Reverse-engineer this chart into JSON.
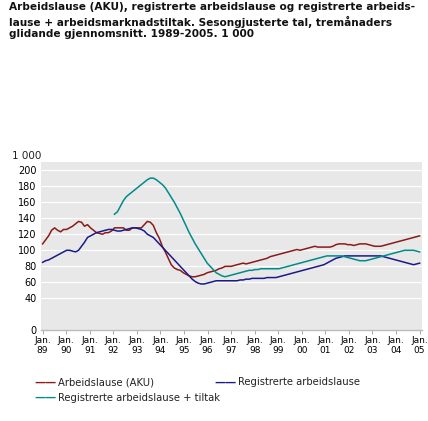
{
  "title_lines": [
    "Arbeidslause (AKU), registrerte arbeidslause og registrerte arbeids-",
    "lause + arbeidsmarknadstiltak. Sesongjusterte tal, tremånaders",
    "glidande gjennomsnitt. 1989-2005. 1 000"
  ],
  "ylabel_top": "1 000",
  "yticks": [
    0,
    40,
    60,
    80,
    100,
    120,
    140,
    160,
    180,
    200
  ],
  "ylim": [
    0,
    210
  ],
  "xtick_labels": [
    "Jan.\n89",
    "Jan.\n90",
    "Jan.\n91",
    "Jan.\n92",
    "Jan.\n93",
    "Jan.\n94",
    "Jan.\n95",
    "Jan.\n96",
    "Jan.\n97",
    "Jan.\n98",
    "Jan.\n99",
    "Jan.\n00",
    "Jan.\n01",
    "Jan.\n02",
    "Jan.\n03",
    "Jan.\n04",
    "Jan.\n05"
  ],
  "color_aku": "#8B1A1A",
  "color_reg": "#1A1A8B",
  "color_tiltak": "#008B8B",
  "legend": [
    "Arbeidslause (AKU)",
    "Registrerte arbeidslause",
    "Registrerte arbeidslause + tiltak"
  ],
  "plot_bg": "#e8e8e8",
  "fig_bg": "#ffffff",
  "grid_color": "#ffffff",
  "aku": [
    108,
    113,
    118,
    125,
    128,
    125,
    123,
    126,
    126,
    128,
    130,
    133,
    136,
    135,
    130,
    132,
    128,
    125,
    122,
    121,
    120,
    122,
    122,
    124,
    128,
    128,
    128,
    128,
    125,
    125,
    128,
    128,
    128,
    128,
    132,
    136,
    135,
    131,
    122,
    115,
    105,
    98,
    90,
    82,
    78,
    76,
    75,
    72,
    70,
    68,
    67,
    67,
    68,
    69,
    70,
    72,
    73,
    74,
    75,
    77,
    78,
    80,
    80,
    80,
    81,
    82,
    83,
    84,
    83,
    84,
    85,
    86,
    87,
    88,
    89,
    90,
    92,
    93,
    94,
    95,
    96,
    97,
    98,
    99,
    100,
    101,
    100,
    101,
    102,
    103,
    104,
    105,
    104,
    104,
    104,
    104,
    104,
    105,
    107,
    108,
    108,
    108,
    107,
    107,
    106,
    107,
    108,
    108,
    108,
    107,
    106,
    105,
    105,
    105,
    106,
    107,
    108,
    109,
    110,
    111,
    112,
    113,
    114,
    115,
    116,
    117,
    118
  ],
  "reg": [
    85,
    87,
    88,
    90,
    92,
    94,
    96,
    98,
    100,
    100,
    99,
    98,
    100,
    105,
    110,
    116,
    118,
    120,
    122,
    123,
    124,
    125,
    126,
    126,
    125,
    124,
    124,
    125,
    126,
    127,
    128,
    128,
    127,
    126,
    124,
    120,
    118,
    116,
    112,
    108,
    104,
    100,
    96,
    92,
    88,
    84,
    80,
    76,
    72,
    68,
    64,
    61,
    59,
    58,
    58,
    59,
    60,
    61,
    62,
    62,
    62,
    62,
    62,
    62,
    62,
    62,
    63,
    63,
    64,
    64,
    65,
    65,
    65,
    65,
    65,
    66,
    66,
    66,
    66,
    67,
    68,
    69,
    70,
    71,
    72,
    73,
    74,
    75,
    76,
    77,
    78,
    79,
    80,
    81,
    82,
    84,
    86,
    88,
    90,
    91,
    92,
    93,
    93,
    93,
    93,
    93,
    93,
    93,
    93,
    93,
    93,
    93,
    93,
    93,
    92,
    91,
    90,
    89,
    88,
    87,
    86,
    85,
    84,
    83,
    82,
    83,
    84
  ],
  "tiltak": [
    null,
    null,
    null,
    null,
    null,
    null,
    null,
    null,
    null,
    null,
    null,
    null,
    null,
    null,
    null,
    null,
    null,
    null,
    null,
    null,
    null,
    null,
    null,
    null,
    145,
    148,
    155,
    162,
    167,
    170,
    173,
    176,
    179,
    182,
    185,
    188,
    190,
    190,
    188,
    185,
    182,
    178,
    172,
    166,
    160,
    153,
    146,
    138,
    130,
    122,
    115,
    108,
    102,
    96,
    90,
    84,
    80,
    76,
    72,
    70,
    68,
    67,
    68,
    69,
    70,
    71,
    72,
    73,
    74,
    75,
    75,
    76,
    76,
    77,
    77,
    77,
    77,
    77,
    77,
    77,
    78,
    79,
    80,
    81,
    82,
    83,
    84,
    85,
    86,
    87,
    88,
    89,
    90,
    91,
    92,
    93,
    93,
    93,
    93,
    93,
    93,
    92,
    91,
    90,
    89,
    88,
    87,
    87,
    87,
    88,
    89,
    90,
    91,
    92,
    93,
    94,
    95,
    96,
    97,
    98,
    99,
    100,
    100,
    100,
    100,
    99,
    98
  ]
}
